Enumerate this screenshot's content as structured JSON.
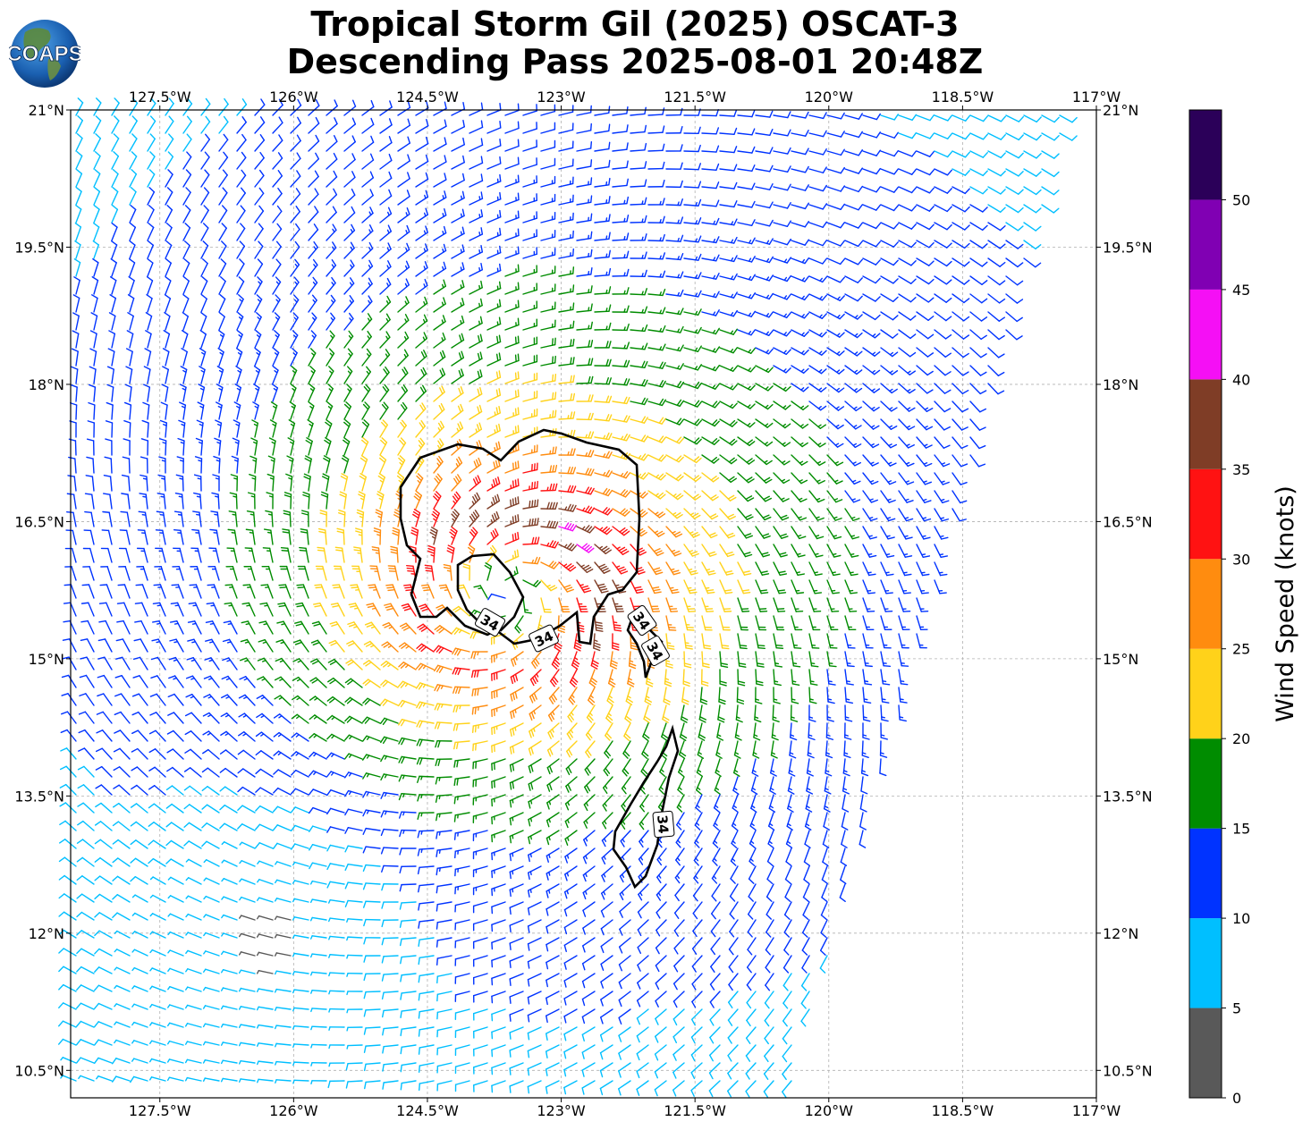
{
  "header": {
    "title_line1": "Tropical Storm Gil (2025) OSCAT-3",
    "title_line2": "Descending Pass 2025-08-01 20:48Z",
    "logo_text": "COAPS"
  },
  "map": {
    "lon_range": [
      -128.5,
      -117
    ],
    "lat_range": [
      10.2,
      21
    ],
    "lon_ticks": [
      "127.5°W",
      "126°W",
      "124.5°W",
      "123°W",
      "121.5°W",
      "120°W",
      "118.5°W",
      "117°W"
    ],
    "lon_tick_values": [
      -127.5,
      -126,
      -124.5,
      -123,
      -121.5,
      -120,
      -118.5,
      -117
    ],
    "lat_ticks": [
      "10.5°N",
      "12°N",
      "13.5°N",
      "15°N",
      "16.5°N",
      "18°N",
      "19.5°N",
      "21°N"
    ],
    "lat_tick_values": [
      10.5,
      12,
      13.5,
      15,
      16.5,
      18,
      19.5,
      21
    ],
    "storm_center": {
      "lon": -123.6,
      "lat": 15.7
    },
    "contour_value": 34,
    "contour_labels": [
      "34",
      "34",
      "34",
      "34",
      "34"
    ],
    "grid": true
  },
  "colorbar": {
    "title": "Wind Speed (knots)",
    "tick_labels": [
      "0",
      "5",
      "10",
      "15",
      "20",
      "25",
      "30",
      "35",
      "40",
      "45",
      "50"
    ],
    "colors": [
      "#595959",
      "#00bfff",
      "#0033ff",
      "#008c00",
      "#ffd21a",
      "#ff8c0f",
      "#ff1212",
      "#7f3d26",
      "#f50ff5",
      "#8000b3",
      "#2b0059"
    ],
    "bins": [
      0,
      5,
      10,
      15,
      20,
      25,
      30,
      35,
      40,
      45,
      50,
      55
    ]
  }
}
